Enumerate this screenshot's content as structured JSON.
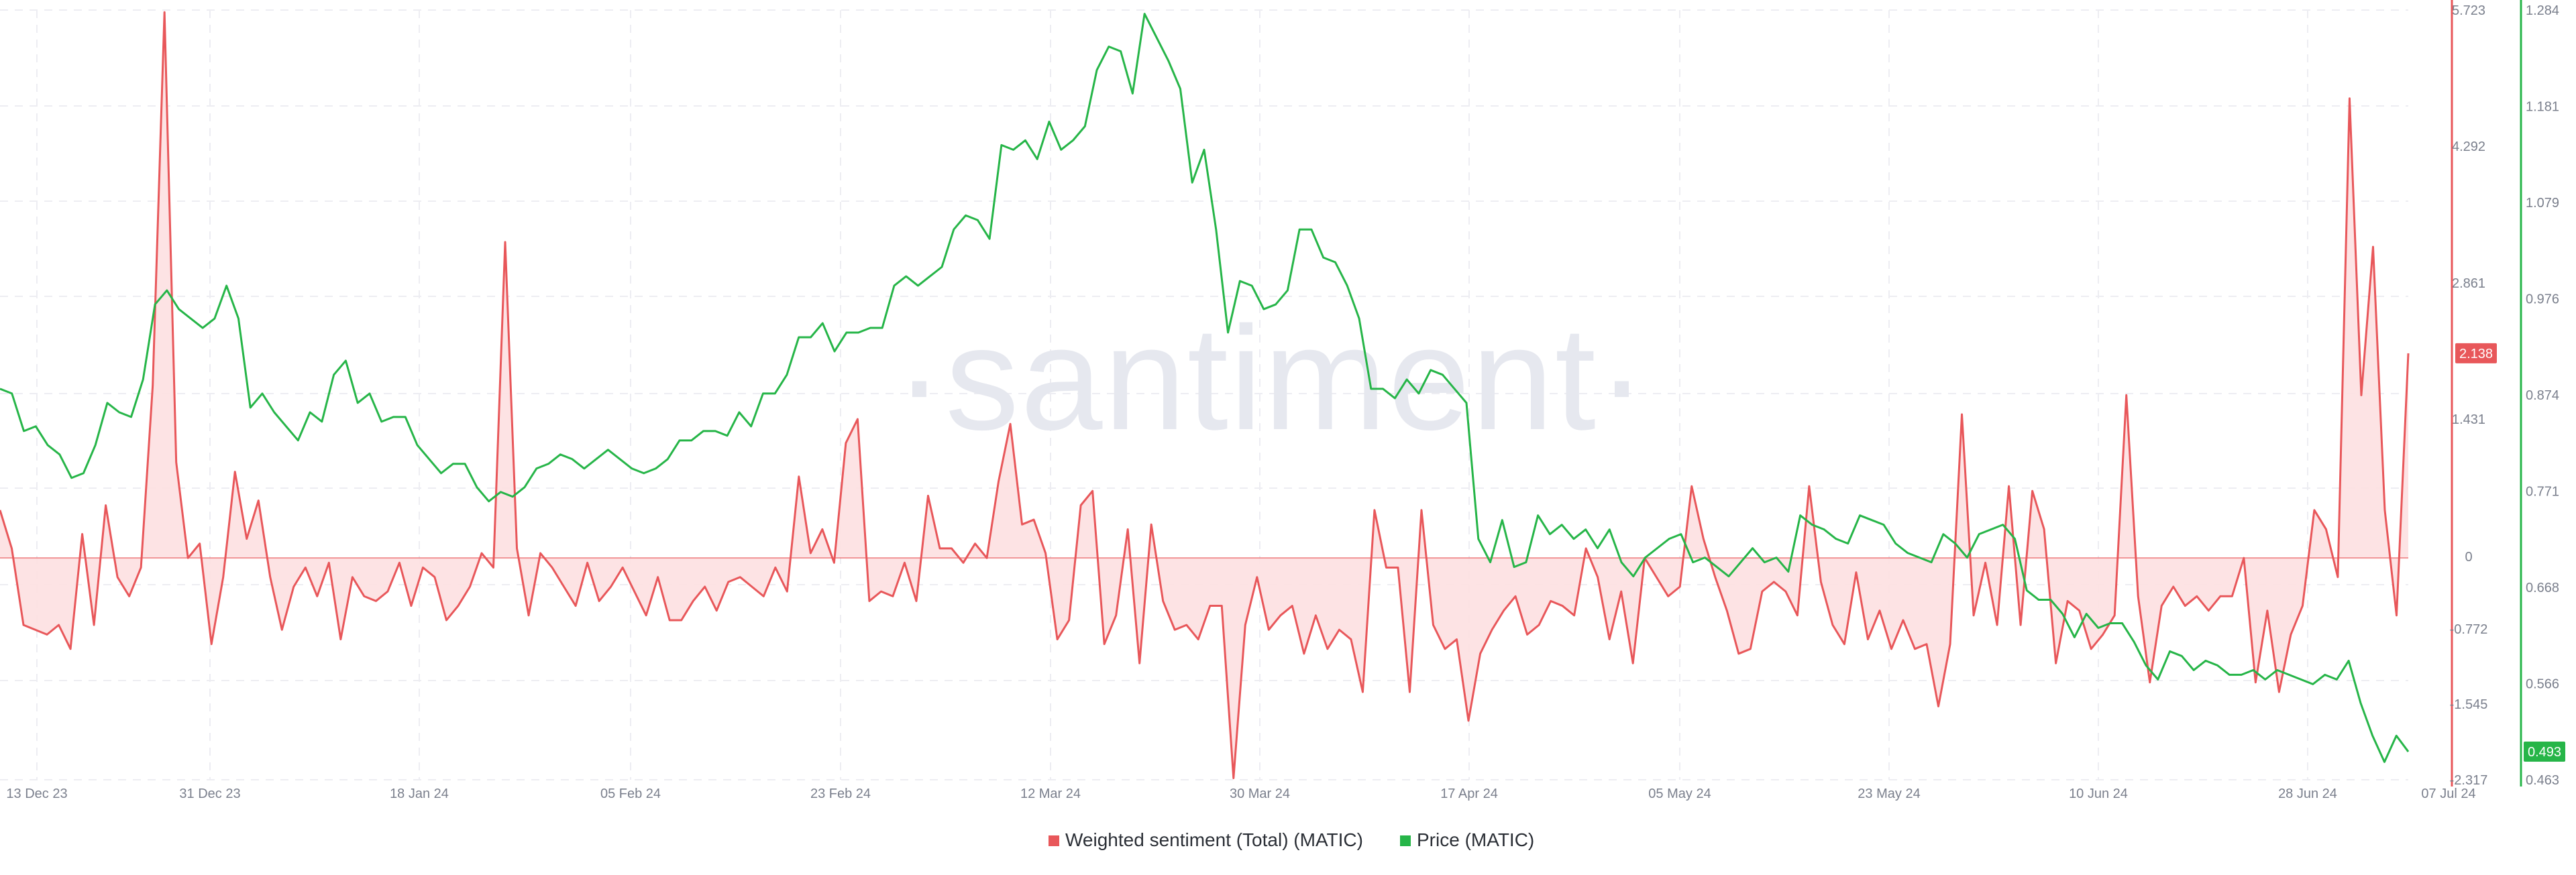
{
  "chart_data": {
    "type": "line",
    "watermark": "·santiment·",
    "x_labels": [
      "13 Dec 23",
      "31 Dec 23",
      "18 Jan 24",
      "05 Feb 24",
      "23 Feb 24",
      "12 Mar 24",
      "30 Mar 24",
      "17 Apr 24",
      "05 May 24",
      "23 May 24",
      "10 Jun 24",
      "28 Jun 24",
      "07 Jul 24"
    ],
    "y_left_ticks": [
      "5.723",
      "4.292",
      "2.861",
      "1.431",
      "0",
      "-0.772",
      "-1.545",
      "-2.317"
    ],
    "y_right_ticks": [
      "1.284",
      "1.181",
      "1.079",
      "0.976",
      "0.874",
      "0.771",
      "0.668",
      "0.566",
      "0.463"
    ],
    "series": [
      {
        "name": "Weighted sentiment (Total) (MATIC)",
        "axis": "left",
        "color": "#e8575a",
        "fill": "#fde0e1",
        "last_value_label": "2.138",
        "values": [
          0.5,
          0.1,
          -0.7,
          -0.75,
          -0.8,
          -0.7,
          -0.95,
          0.25,
          -0.7,
          0.55,
          -0.2,
          -0.4,
          -0.1,
          1.8,
          5.7,
          1.0,
          0.0,
          0.15,
          -0.9,
          -0.2,
          0.9,
          0.2,
          0.6,
          -0.2,
          -0.75,
          -0.3,
          -0.1,
          -0.4,
          -0.05,
          -0.85,
          -0.2,
          -0.4,
          -0.45,
          -0.35,
          -0.05,
          -0.5,
          -0.1,
          -0.2,
          -0.65,
          -0.5,
          -0.3,
          0.05,
          -0.1,
          3.3,
          0.1,
          -0.6,
          0.05,
          -0.1,
          -0.3,
          -0.5,
          -0.05,
          -0.45,
          -0.3,
          -0.1,
          -0.35,
          -0.6,
          -0.2,
          -0.65,
          -0.65,
          -0.45,
          -0.3,
          -0.55,
          -0.25,
          -0.2,
          -0.3,
          -0.4,
          -0.1,
          -0.35,
          0.85,
          0.05,
          0.3,
          -0.05,
          1.2,
          1.45,
          -0.45,
          -0.35,
          -0.4,
          -0.05,
          -0.45,
          0.65,
          0.1,
          0.1,
          -0.05,
          0.15,
          0.0,
          0.8,
          1.4,
          0.35,
          0.4,
          0.05,
          -0.85,
          -0.65,
          0.55,
          0.7,
          -0.9,
          -0.6,
          0.3,
          -1.1,
          0.35,
          -0.45,
          -0.75,
          -0.7,
          -0.85,
          -0.5,
          -0.5,
          -2.3,
          -0.7,
          -0.2,
          -0.75,
          -0.6,
          -0.5,
          -1.0,
          -0.6,
          -0.95,
          -0.75,
          -0.85,
          -1.4,
          0.5,
          -0.1,
          -0.1,
          -1.4,
          0.5,
          -0.7,
          -0.95,
          -0.85,
          -1.7,
          -1.0,
          -0.75,
          -0.55,
          -0.4,
          -0.8,
          -0.7,
          -0.45,
          -0.5,
          -0.6,
          0.1,
          -0.2,
          -0.85,
          -0.35,
          -1.1,
          0.0,
          -0.2,
          -0.4,
          -0.3,
          0.75,
          0.2,
          -0.2,
          -0.55,
          -1.0,
          -0.95,
          -0.35,
          -0.25,
          -0.35,
          -0.6,
          0.75,
          -0.25,
          -0.7,
          -0.9,
          -0.15,
          -0.85,
          -0.55,
          -0.95,
          -0.65,
          -0.95,
          -0.9,
          -1.55,
          -0.9,
          1.5,
          -0.6,
          -0.05,
          -0.7,
          0.75,
          -0.7,
          0.7,
          0.3,
          -1.1,
          -0.45,
          -0.55,
          -0.95,
          -0.8,
          -0.6,
          1.7,
          -0.4,
          -1.3,
          -0.5,
          -0.3,
          -0.5,
          -0.4,
          -0.55,
          -0.4,
          -0.4,
          0.0,
          -1.3,
          -0.55,
          -1.4,
          -0.8,
          -0.5,
          0.5,
          0.3,
          -0.2,
          4.8,
          1.7,
          3.25,
          0.5,
          -0.6,
          2.138
        ]
      },
      {
        "name": "Price (MATIC)",
        "axis": "right",
        "color": "#26b548",
        "last_value_label": "0.493",
        "values": [
          0.88,
          0.875,
          0.835,
          0.84,
          0.82,
          0.81,
          0.785,
          0.79,
          0.82,
          0.865,
          0.855,
          0.85,
          0.89,
          0.97,
          0.985,
          0.965,
          0.955,
          0.945,
          0.955,
          0.99,
          0.955,
          0.86,
          0.875,
          0.855,
          0.84,
          0.825,
          0.855,
          0.845,
          0.895,
          0.91,
          0.865,
          0.875,
          0.845,
          0.85,
          0.85,
          0.82,
          0.805,
          0.79,
          0.8,
          0.8,
          0.775,
          0.76,
          0.77,
          0.765,
          0.775,
          0.795,
          0.8,
          0.81,
          0.805,
          0.795,
          0.805,
          0.815,
          0.805,
          0.795,
          0.79,
          0.795,
          0.805,
          0.825,
          0.825,
          0.835,
          0.835,
          0.83,
          0.855,
          0.84,
          0.875,
          0.875,
          0.895,
          0.935,
          0.935,
          0.95,
          0.92,
          0.94,
          0.94,
          0.945,
          0.945,
          0.99,
          1.0,
          0.99,
          1.0,
          1.01,
          1.05,
          1.065,
          1.06,
          1.04,
          1.14,
          1.135,
          1.145,
          1.125,
          1.165,
          1.135,
          1.145,
          1.16,
          1.22,
          1.245,
          1.24,
          1.195,
          1.28,
          1.255,
          1.23,
          1.2,
          1.1,
          1.135,
          1.05,
          0.94,
          0.995,
          0.99,
          0.965,
          0.97,
          0.985,
          1.05,
          1.05,
          1.02,
          1.015,
          0.99,
          0.955,
          0.88,
          0.88,
          0.87,
          0.89,
          0.875,
          0.9,
          0.895,
          0.88,
          0.865,
          0.72,
          0.695,
          0.74,
          0.69,
          0.695,
          0.745,
          0.725,
          0.735,
          0.72,
          0.73,
          0.71,
          0.73,
          0.695,
          0.68,
          0.7,
          0.71,
          0.72,
          0.725,
          0.695,
          0.7,
          0.69,
          0.68,
          0.695,
          0.71,
          0.695,
          0.7,
          0.685,
          0.745,
          0.735,
          0.73,
          0.72,
          0.715,
          0.745,
          0.74,
          0.735,
          0.715,
          0.705,
          0.7,
          0.695,
          0.725,
          0.715,
          0.7,
          0.725,
          0.73,
          0.735,
          0.72,
          0.665,
          0.655,
          0.655,
          0.64,
          0.615,
          0.64,
          0.625,
          0.63,
          0.63,
          0.61,
          0.585,
          0.57,
          0.6,
          0.595,
          0.58,
          0.59,
          0.585,
          0.575,
          0.575,
          0.58,
          0.57,
          0.58,
          0.575,
          0.57,
          0.565,
          0.575,
          0.57,
          0.59,
          0.545,
          0.51,
          0.482,
          0.51,
          0.493
        ]
      }
    ],
    "legend": [
      {
        "label": "Weighted sentiment (Total) (MATIC)",
        "color": "#e8575a"
      },
      {
        "label": "Price (MATIC)",
        "color": "#26b548"
      }
    ],
    "left_axis": {
      "min": -2.317,
      "max": 5.723,
      "color": "#e8575a"
    },
    "right_axis": {
      "min": 0.463,
      "max": 1.284,
      "color": "#26b548"
    },
    "grid": true
  }
}
